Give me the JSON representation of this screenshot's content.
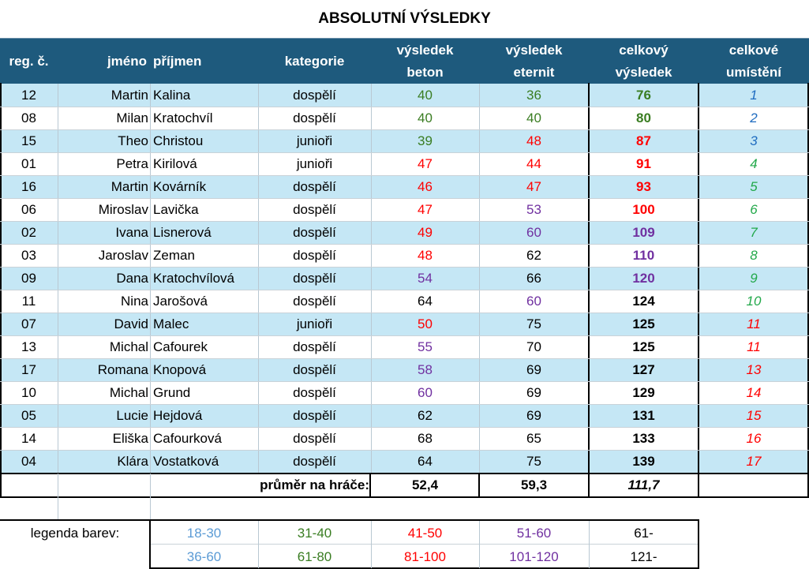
{
  "title": "ABSOLUTNÍ VÝSLEDKY",
  "columns": {
    "reg": "reg. č.",
    "jmeno": "jméno",
    "prijmeni": "příjmen",
    "kategorie": "kategorie",
    "beton_1": "výsledek",
    "beton_2": "beton",
    "eternit_1": "výsledek",
    "eternit_2": "eternit",
    "celkovy_1": "celkový",
    "celkovy_2": "výsledek",
    "umisteni_1": "celkové",
    "umisteni_2": "umístění"
  },
  "rows": [
    {
      "reg": "12",
      "jmeno": "Martin",
      "prijmeni": "Kalina",
      "kategorie": "dospělí",
      "beton": "40",
      "eternit": "36",
      "celkem": "76",
      "umisteni": "1"
    },
    {
      "reg": "08",
      "jmeno": "Milan",
      "prijmeni": "Kratochvíl",
      "kategorie": "dospělí",
      "beton": "40",
      "eternit": "40",
      "celkem": "80",
      "umisteni": "2"
    },
    {
      "reg": "15",
      "jmeno": "Theo",
      "prijmeni": "Christou",
      "kategorie": "junioři",
      "beton": "39",
      "eternit": "48",
      "celkem": "87",
      "umisteni": "3"
    },
    {
      "reg": "01",
      "jmeno": "Petra",
      "prijmeni": "Kirilová",
      "kategorie": "junioři",
      "beton": "47",
      "eternit": "44",
      "celkem": "91",
      "umisteni": "4"
    },
    {
      "reg": "16",
      "jmeno": "Martin",
      "prijmeni": "Kovárník",
      "kategorie": "dospělí",
      "beton": "46",
      "eternit": "47",
      "celkem": "93",
      "umisteni": "5"
    },
    {
      "reg": "06",
      "jmeno": "Miroslav",
      "prijmeni": "Lavička",
      "kategorie": "dospělí",
      "beton": "47",
      "eternit": "53",
      "celkem": "100",
      "umisteni": "6"
    },
    {
      "reg": "02",
      "jmeno": "Ivana",
      "prijmeni": "Lisnerová",
      "kategorie": "dospělí",
      "beton": "49",
      "eternit": "60",
      "celkem": "109",
      "umisteni": "7"
    },
    {
      "reg": "03",
      "jmeno": "Jaroslav",
      "prijmeni": "Zeman",
      "kategorie": "dospělí",
      "beton": "48",
      "eternit": "62",
      "celkem": "110",
      "umisteni": "8"
    },
    {
      "reg": "09",
      "jmeno": "Dana",
      "prijmeni": "Kratochvílová",
      "kategorie": "dospělí",
      "beton": "54",
      "eternit": "66",
      "celkem": "120",
      "umisteni": "9"
    },
    {
      "reg": "11",
      "jmeno": "Nina",
      "prijmeni": "Jarošová",
      "kategorie": "dospělí",
      "beton": "64",
      "eternit": "60",
      "celkem": "124",
      "umisteni": "10"
    },
    {
      "reg": "07",
      "jmeno": "David",
      "prijmeni": "Malec",
      "kategorie": "junioři",
      "beton": "50",
      "eternit": "75",
      "celkem": "125",
      "umisteni": "11"
    },
    {
      "reg": "13",
      "jmeno": "Michal",
      "prijmeni": "Cafourek",
      "kategorie": "dospělí",
      "beton": "55",
      "eternit": "70",
      "celkem": "125",
      "umisteni": "11"
    },
    {
      "reg": "17",
      "jmeno": "Romana",
      "prijmeni": "Knopová",
      "kategorie": "dospělí",
      "beton": "58",
      "eternit": "69",
      "celkem": "127",
      "umisteni": "13"
    },
    {
      "reg": "10",
      "jmeno": "Michal",
      "prijmeni": "Grund",
      "kategorie": "dospělí",
      "beton": "60",
      "eternit": "69",
      "celkem": "129",
      "umisteni": "14"
    },
    {
      "reg": "05",
      "jmeno": "Lucie",
      "prijmeni": "Hejdová",
      "kategorie": "dospělí",
      "beton": "62",
      "eternit": "69",
      "celkem": "131",
      "umisteni": "15"
    },
    {
      "reg": "14",
      "jmeno": "Eliška",
      "prijmeni": "Cafourková",
      "kategorie": "dospělí",
      "beton": "68",
      "eternit": "65",
      "celkem": "133",
      "umisteni": "16"
    },
    {
      "reg": "04",
      "jmeno": "Klára",
      "prijmeni": "Vostatková",
      "kategorie": "dospělí",
      "beton": "64",
      "eternit": "75",
      "celkem": "139",
      "umisteni": "17"
    }
  ],
  "averages": {
    "label": "průměr na hráče:",
    "beton": "52,4",
    "eternit": "59,3",
    "celkem": "111,7"
  },
  "legend": {
    "label": "legenda barev:",
    "single_ranges": [
      "18-30",
      "31-40",
      "41-50",
      "51-60",
      "61-"
    ],
    "total_ranges": [
      "36-60",
      "61-80",
      "81-100",
      "101-120",
      "121-"
    ],
    "colors": [
      "#5b9bd5",
      "#3a7d22",
      "#ff0000",
      "#7030a0",
      "#000000"
    ]
  },
  "rank_colors": {
    "top3": "#1f6cc0",
    "green": "#22a84a",
    "red": "#ff0000"
  },
  "colors": {
    "header_bg": "#1e5a7d",
    "row_stripe": "#c5e7f5"
  }
}
